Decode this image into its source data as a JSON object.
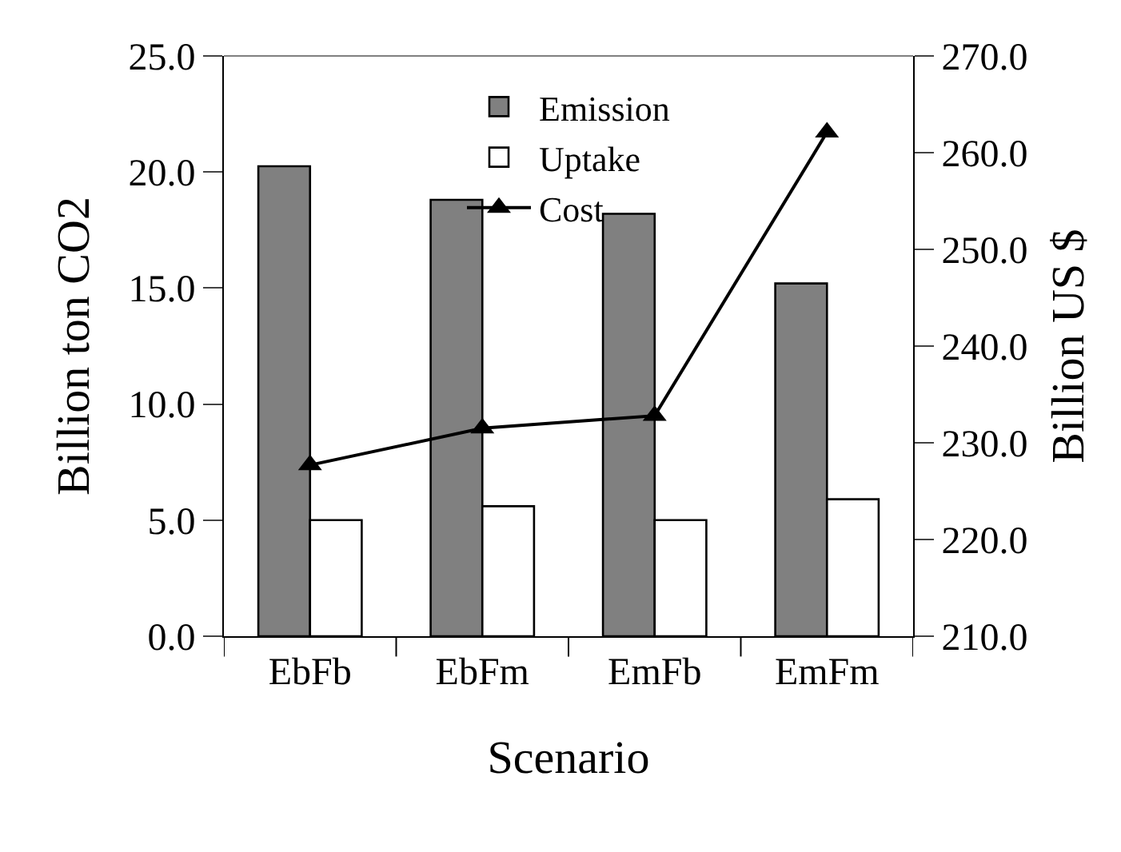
{
  "chart_data": {
    "type": "bar",
    "xlabel": "Scenario",
    "ylabel": "Billion ton CO2",
    "y2label": "Billion US $",
    "categories": [
      "EbFb",
      "EbFm",
      "EmFb",
      "EmFm"
    ],
    "series": [
      {
        "name": "Emission",
        "color": "#808080",
        "values": [
          20.25,
          18.8,
          18.2,
          15.2
        ]
      },
      {
        "name": "Uptake",
        "color": "#ffffff",
        "values": [
          5.0,
          5.6,
          5.0,
          5.9
        ]
      },
      {
        "name": "Cost",
        "type": "line",
        "axis": "y2",
        "color": "#000000",
        "marker": "triangle",
        "values": [
          227.7,
          231.5,
          232.8,
          262.1
        ]
      }
    ],
    "ylim": [
      0,
      25
    ],
    "yticks": [
      {
        "value": 0,
        "label": "0.0"
      },
      {
        "value": 5,
        "label": "5.0"
      },
      {
        "value": 10,
        "label": "10.0"
      },
      {
        "value": 15,
        "label": "15.0"
      },
      {
        "value": 20,
        "label": "20.0"
      },
      {
        "value": 25,
        "label": "25.0"
      }
    ],
    "y2lim": [
      210,
      270
    ],
    "y2ticks": [
      {
        "value": 210,
        "label": "210.0"
      },
      {
        "value": 220,
        "label": "220.0"
      },
      {
        "value": 230,
        "label": "230.0"
      },
      {
        "value": 240,
        "label": "240.0"
      },
      {
        "value": 250,
        "label": "250.0"
      },
      {
        "value": 260,
        "label": "260.0"
      },
      {
        "value": 270,
        "label": "270.0"
      }
    ],
    "legend": "top"
  }
}
